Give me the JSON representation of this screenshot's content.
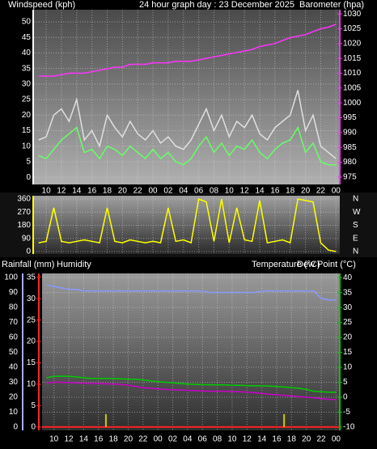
{
  "chart_data": [
    {
      "type": "line",
      "title": "24 hour graph day : 23 December 2025",
      "ylabel": "Windspeed (kph)",
      "y2label": "Barometer (hpa)",
      "xlim": [
        8.4,
        48.5
      ],
      "xticks": [
        {
          "value": 10,
          "label": "10"
        },
        {
          "value": 12,
          "label": "12"
        },
        {
          "value": 14,
          "label": "14"
        },
        {
          "value": 16,
          "label": "16"
        },
        {
          "value": 18,
          "label": "18"
        },
        {
          "value": 20,
          "label": "20"
        },
        {
          "value": 22,
          "label": "22"
        },
        {
          "value": 24,
          "label": "00"
        },
        {
          "value": 26,
          "label": "02"
        },
        {
          "value": 28,
          "label": "04"
        },
        {
          "value": 30,
          "label": "06"
        },
        {
          "value": 32,
          "label": "08"
        },
        {
          "value": 34,
          "label": "10"
        },
        {
          "value": 36,
          "label": "12"
        },
        {
          "value": 38,
          "label": "14"
        },
        {
          "value": 40,
          "label": "16"
        },
        {
          "value": 42,
          "label": "18"
        },
        {
          "value": 44,
          "label": "20"
        },
        {
          "value": 46,
          "label": "22"
        },
        {
          "value": 48,
          "label": "00"
        }
      ],
      "ylim": [
        -2.3,
        53.9
      ],
      "yticks": [
        0,
        5,
        10,
        15,
        20,
        25,
        30,
        35,
        40,
        45,
        50
      ],
      "ycolor": "#ffffff",
      "y2lim": [
        972.5,
        1031.4
      ],
      "y2ticks": [
        975,
        980,
        985,
        990,
        995,
        1000,
        1005,
        1010,
        1015,
        1020,
        1025,
        1030
      ],
      "y2color": "#ff33ff",
      "grid": true,
      "x": [
        9,
        10,
        11,
        12,
        13,
        14,
        15,
        16,
        17,
        18,
        19,
        20,
        21,
        22,
        23,
        24,
        25,
        26,
        27,
        28,
        29,
        30,
        31,
        32,
        33,
        34,
        35,
        36,
        37,
        38,
        39,
        40,
        41,
        42,
        43,
        44,
        45,
        46,
        47,
        48
      ],
      "series": [
        {
          "color": "#e0e0e0",
          "values": [
            12,
            13,
            20,
            22,
            18,
            25,
            12,
            15,
            10,
            20,
            16,
            13,
            18,
            14,
            12,
            15,
            11,
            13,
            10,
            9,
            12,
            17,
            22,
            15,
            20,
            13,
            18,
            16,
            20,
            14,
            12,
            16,
            18,
            20,
            28,
            15,
            20,
            10,
            8,
            6
          ]
        },
        {
          "color": "#66ff66",
          "values": [
            7,
            6,
            9,
            12,
            14,
            16,
            8,
            9,
            6,
            10,
            9,
            7,
            10,
            8,
            6,
            9,
            6,
            8,
            5,
            4,
            6,
            10,
            13,
            8,
            11,
            7,
            10,
            9,
            12,
            8,
            6,
            9,
            11,
            12,
            16,
            8,
            11,
            5,
            4,
            4
          ]
        },
        {
          "color": "#ff33ff",
          "axis": "y2",
          "values": [
            1009,
            1009,
            1009,
            1009.5,
            1010,
            1010,
            1010,
            1010.5,
            1011,
            1011.5,
            1012,
            1012,
            1013,
            1013,
            1013,
            1013.5,
            1013.5,
            1013.5,
            1014,
            1014,
            1014,
            1014.5,
            1015,
            1015.5,
            1016,
            1016.5,
            1017,
            1017.5,
            1018,
            1019,
            1019.5,
            1020,
            1021,
            1022,
            1022.5,
            1023,
            1024,
            1025,
            1025.5,
            1026.5
          ]
        }
      ]
    },
    {
      "type": "line",
      "xlim": [
        8.4,
        48.5
      ],
      "xticks": [
        10,
        12,
        14,
        16,
        18,
        20,
        22,
        24,
        26,
        28,
        30,
        32,
        34,
        36,
        38,
        40,
        42,
        44,
        46,
        48
      ],
      "ylim": [
        -17,
        382
      ],
      "yticks": [
        0,
        90,
        180,
        270,
        360
      ],
      "ycolor": "#ffff00",
      "y2lim": [
        -17,
        382
      ],
      "y2ticks": [
        {
          "value": 360,
          "label": "N"
        },
        {
          "value": 270,
          "label": "W"
        },
        {
          "value": 180,
          "label": "S"
        },
        {
          "value": 90,
          "label": "E"
        },
        {
          "value": 0,
          "label": "N"
        }
      ],
      "y2color": "#ffffff",
      "grid": true,
      "x": [
        9,
        10,
        11,
        12,
        13,
        14,
        15,
        16,
        17,
        18,
        19,
        20,
        21,
        22,
        23,
        24,
        25,
        26,
        27,
        28,
        29,
        30,
        31,
        32,
        33,
        34,
        35,
        36,
        37,
        38,
        39,
        40,
        41,
        42,
        43,
        44,
        45,
        46,
        47,
        48
      ],
      "series": [
        {
          "color": "#ffff00",
          "values": [
            60,
            70,
            300,
            70,
            60,
            70,
            80,
            70,
            60,
            300,
            70,
            60,
            80,
            70,
            60,
            70,
            60,
            300,
            70,
            80,
            60,
            360,
            340,
            70,
            360,
            60,
            300,
            80,
            70,
            350,
            60,
            70,
            80,
            60,
            360,
            350,
            340,
            60,
            10,
            0
          ]
        }
      ]
    },
    {
      "type": "line",
      "xlim": [
        8.4,
        48.5
      ],
      "xticks": [
        {
          "value": 10,
          "label": "10"
        },
        {
          "value": 12,
          "label": "12"
        },
        {
          "value": 14,
          "label": "14"
        },
        {
          "value": 16,
          "label": "16"
        },
        {
          "value": 18,
          "label": "18"
        },
        {
          "value": 20,
          "label": "20"
        },
        {
          "value": 22,
          "label": "22"
        },
        {
          "value": 24,
          "label": "00"
        },
        {
          "value": 26,
          "label": "02"
        },
        {
          "value": 28,
          "label": "04"
        },
        {
          "value": 30,
          "label": "06"
        },
        {
          "value": 32,
          "label": "08"
        },
        {
          "value": 34,
          "label": "10"
        },
        {
          "value": 36,
          "label": "12"
        },
        {
          "value": 38,
          "label": "14"
        },
        {
          "value": 40,
          "label": "16"
        },
        {
          "value": 42,
          "label": "18"
        },
        {
          "value": 44,
          "label": "20"
        },
        {
          "value": 46,
          "label": "22"
        },
        {
          "value": 48,
          "label": "00"
        }
      ],
      "ylim": [
        -2.2,
        102.7
      ],
      "yticks": [
        0,
        10,
        20,
        30,
        40,
        50,
        60,
        70,
        80,
        90,
        100
      ],
      "ycolor": "#aaaaff",
      "y2lim": [
        -11.1,
        41.4
      ],
      "y2ticks": [
        -10,
        -5,
        0,
        5,
        10,
        15,
        20,
        25,
        30,
        35,
        40
      ],
      "y2color": "#00cc00",
      "y3lim": [
        -0.8,
        35.9
      ],
      "y3ticks": [
        0,
        5,
        10,
        15,
        20,
        25,
        30,
        35
      ],
      "y3color": "#ff2222",
      "grid": true,
      "x": [
        9,
        10,
        11,
        12,
        13,
        14,
        15,
        16,
        17,
        18,
        19,
        20,
        21,
        22,
        23,
        24,
        25,
        26,
        27,
        28,
        29,
        30,
        31,
        32,
        33,
        34,
        35,
        36,
        37,
        38,
        39,
        40,
        41,
        42,
        43,
        44,
        45,
        46,
        47,
        48
      ],
      "series": [
        {
          "name": "Rainfall (mm)",
          "type": "bar",
          "axis": "y3",
          "color": "#cccc00",
          "values": [
            0,
            0,
            0,
            0,
            0,
            0,
            0,
            0,
            3,
            0,
            0,
            0,
            0,
            0,
            0,
            0,
            0,
            0,
            0,
            0,
            0,
            0,
            0,
            0,
            0,
            0,
            0,
            0,
            0,
            0,
            0,
            0,
            3,
            0,
            0,
            0,
            0,
            0,
            0,
            0
          ]
        },
        {
          "name": "Humidity",
          "color": "#8899ff",
          "values": [
            95,
            94,
            93,
            92,
            92,
            91,
            91,
            91,
            91,
            91,
            91,
            91,
            91,
            91,
            91,
            91,
            91,
            91,
            91,
            91,
            91,
            91,
            90,
            90,
            90,
            90,
            90,
            90,
            90,
            91,
            91,
            91,
            91,
            91,
            91,
            91,
            91,
            86,
            85,
            85
          ]
        },
        {
          "name": "Temperature (°C)",
          "axis": "y2",
          "color": "#00cc00",
          "values": [
            6.5,
            7,
            7,
            7,
            6.8,
            6.5,
            6.3,
            6.3,
            6.3,
            6.2,
            6.2,
            6,
            6,
            5.8,
            5.5,
            5.2,
            5,
            4.8,
            4.6,
            4.4,
            4.3,
            4.2,
            4.2,
            4.1,
            4.1,
            4,
            4,
            3.9,
            3.8,
            3.8,
            3.7,
            3.6,
            3.4,
            3.2,
            3,
            2.6,
            2,
            1.8,
            1.7,
            1.7
          ]
        },
        {
          "name": "Dew Point (°C)",
          "axis": "y2",
          "color": "#cc00cc",
          "values": [
            4.8,
            5,
            5,
            4.9,
            4.8,
            4.7,
            4.6,
            4.6,
            4.5,
            4.4,
            4.3,
            4,
            3.6,
            3.2,
            3,
            2.8,
            2.6,
            2.5,
            2.4,
            2.3,
            2.2,
            2.1,
            2,
            2,
            2,
            1.9,
            1.8,
            1.7,
            1.5,
            1.3,
            1,
            0.8,
            0.6,
            0.4,
            0.2,
            0,
            -0.2,
            -0.5,
            -0.7,
            -0.8
          ]
        }
      ]
    }
  ]
}
